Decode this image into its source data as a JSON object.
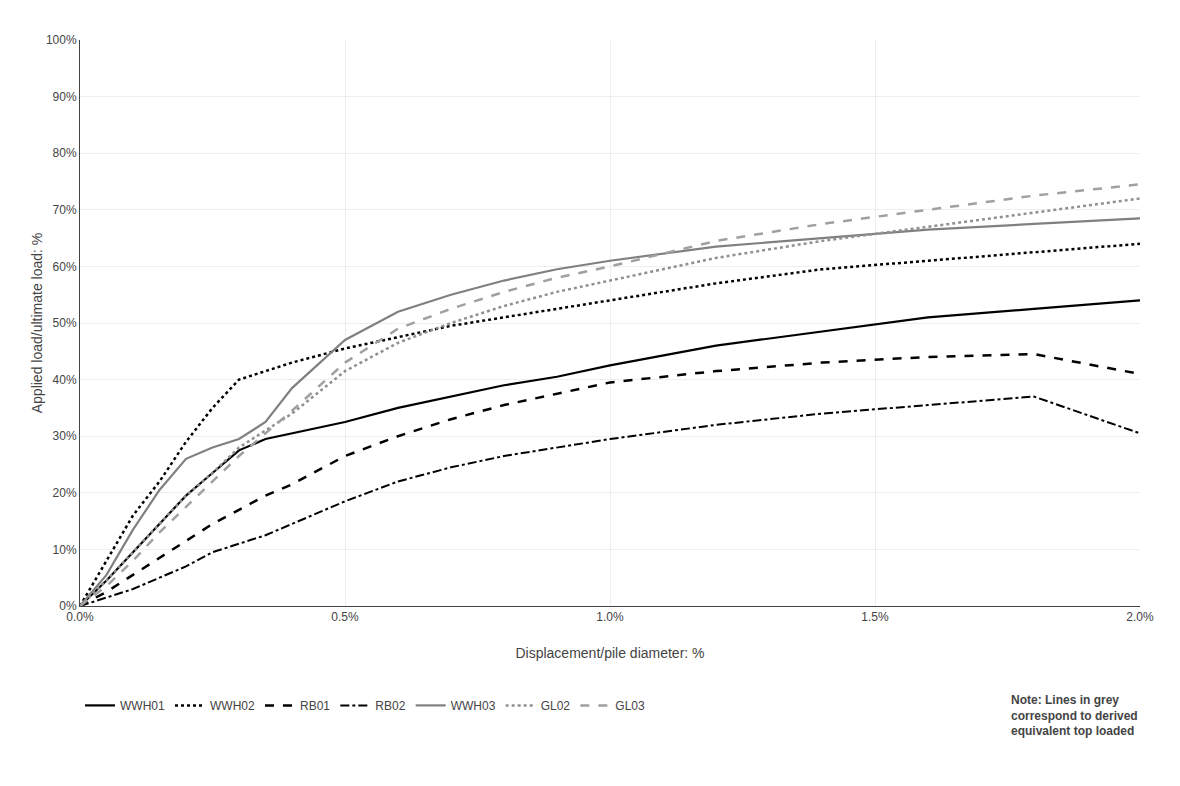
{
  "chart_data": {
    "type": "line",
    "xlabel": "Displacement/pile diameter: %",
    "ylabel": "Applied load/ultimate load: %",
    "xlim": [
      0.0,
      2.0
    ],
    "ylim": [
      0.0,
      100.0
    ],
    "xticks": [
      {
        "value": 0.0,
        "label": "0.0%"
      },
      {
        "value": 0.5,
        "label": "0.5%"
      },
      {
        "value": 1.0,
        "label": "1.0%"
      },
      {
        "value": 1.5,
        "label": "1.5%"
      },
      {
        "value": 2.0,
        "label": "2.0%"
      }
    ],
    "yticks": [
      {
        "value": 0,
        "label": "0%"
      },
      {
        "value": 10,
        "label": "10%"
      },
      {
        "value": 20,
        "label": "20%"
      },
      {
        "value": 30,
        "label": "30%"
      },
      {
        "value": 40,
        "label": "40%"
      },
      {
        "value": 50,
        "label": "50%"
      },
      {
        "value": 60,
        "label": "60%"
      },
      {
        "value": 70,
        "label": "70%"
      },
      {
        "value": 80,
        "label": "80%"
      },
      {
        "value": 90,
        "label": "90%"
      },
      {
        "value": 100,
        "label": "100%"
      }
    ],
    "grid": true,
    "legend": "bottom",
    "x": [
      0.0,
      0.05,
      0.1,
      0.15,
      0.2,
      0.25,
      0.3,
      0.35,
      0.4,
      0.5,
      0.6,
      0.7,
      0.8,
      0.9,
      1.0,
      1.2,
      1.4,
      1.6,
      1.8,
      2.0
    ],
    "series": [
      {
        "name": "WWH01",
        "color": "#000000",
        "line_style": "solid",
        "values": [
          0.0,
          4.5,
          9.5,
          14.5,
          19.5,
          23.5,
          27.5,
          29.5,
          30.5,
          32.5,
          35.0,
          37.0,
          39.0,
          40.5,
          42.5,
          46.0,
          48.5,
          51.0,
          52.5,
          54.0
        ]
      },
      {
        "name": "WWH02",
        "color": "#000000",
        "line_style": "dotted",
        "values": [
          0.0,
          8.0,
          16.0,
          22.0,
          29.0,
          35.0,
          40.0,
          41.5,
          43.0,
          45.5,
          47.5,
          49.5,
          51.0,
          52.5,
          54.0,
          57.0,
          59.5,
          61.0,
          62.5,
          64.0
        ]
      },
      {
        "name": "RB01",
        "color": "#000000",
        "line_style": "dashed",
        "values": [
          0.0,
          2.5,
          5.5,
          8.5,
          11.5,
          14.5,
          17.0,
          19.5,
          21.5,
          26.5,
          30.0,
          33.0,
          35.5,
          37.5,
          39.5,
          41.5,
          43.0,
          44.0,
          44.5,
          41.0
        ]
      },
      {
        "name": "RB02",
        "color": "#000000",
        "line_style": "dashdot",
        "values": [
          0.0,
          1.5,
          3.0,
          5.0,
          7.0,
          9.5,
          11.0,
          12.5,
          14.5,
          18.5,
          22.0,
          24.5,
          26.5,
          28.0,
          29.5,
          32.0,
          34.0,
          35.5,
          37.0,
          30.5
        ]
      },
      {
        "name": "WWH03",
        "color": "#808080",
        "line_style": "solid",
        "values": [
          0.0,
          5.5,
          13.5,
          20.5,
          26.0,
          28.0,
          29.5,
          32.5,
          38.5,
          47.0,
          52.0,
          55.0,
          57.5,
          59.5,
          61.0,
          63.5,
          65.0,
          66.5,
          67.5,
          68.5
        ]
      },
      {
        "name": "GL02",
        "color": "#909090",
        "line_style": "dotted",
        "values": [
          0.0,
          4.5,
          9.5,
          14.5,
          19.5,
          23.5,
          28.0,
          31.0,
          34.0,
          41.5,
          46.5,
          50.0,
          53.0,
          55.5,
          57.5,
          61.5,
          64.5,
          67.0,
          69.5,
          72.0
        ]
      },
      {
        "name": "GL03",
        "color": "#a0a0a0",
        "line_style": "dashed",
        "values": [
          0.0,
          3.5,
          8.0,
          13.0,
          17.5,
          22.0,
          26.5,
          30.5,
          34.5,
          43.0,
          49.0,
          52.5,
          55.5,
          58.0,
          60.0,
          64.5,
          67.5,
          70.0,
          72.5,
          74.5
        ]
      }
    ],
    "annotations": [
      "Note: Lines in grey\ncorrespond to derived\nequivalent top loaded"
    ]
  }
}
